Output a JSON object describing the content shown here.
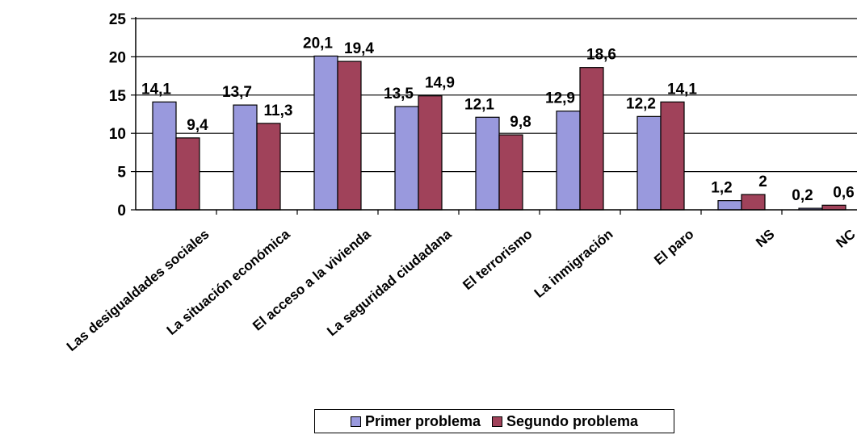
{
  "chart_data": {
    "type": "bar",
    "categories": [
      "Las desigualdades sociales",
      "La situación económica",
      "El acceso a la vivienda",
      "La seguridad ciudadana",
      "El terrorismo",
      "La inmigración",
      "El paro",
      "NS",
      "NC"
    ],
    "series": [
      {
        "name": "Primer problema",
        "color": "#9999dd",
        "values": [
          14.1,
          13.7,
          20.1,
          13.5,
          12.1,
          12.9,
          12.2,
          1.2,
          0.2
        ],
        "labels": [
          "14,1",
          "13,7",
          "20,1",
          "13,5",
          "12,1",
          "12,9",
          "12,2",
          "1,2",
          "0,2"
        ]
      },
      {
        "name": "Segundo problema",
        "color": "#a0425a",
        "values": [
          9.4,
          11.3,
          19.4,
          14.9,
          9.8,
          18.6,
          14.1,
          2,
          0.6
        ],
        "labels": [
          "9,4",
          "11,3",
          "19,4",
          "14,9",
          "9,8",
          "18,6",
          "14,1",
          "2",
          "0,6"
        ]
      }
    ],
    "yticks": [
      "0",
      "5",
      "10",
      "15",
      "20",
      "25"
    ],
    "ylim": [
      0,
      25
    ],
    "grid": true,
    "legend_position": "bottom"
  }
}
